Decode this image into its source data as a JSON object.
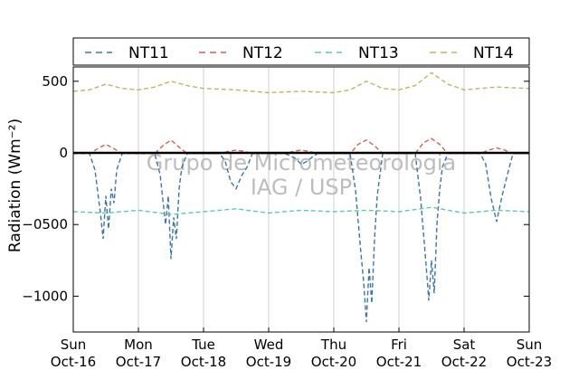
{
  "chart_data": {
    "type": "line",
    "ylabel": "Radiation (Wm⁻²)",
    "ylim": [
      -1250,
      600
    ],
    "xlim": [
      "2016-10-16",
      "2016-10-23"
    ],
    "yticks": [
      500,
      0,
      -500,
      -1000
    ],
    "ytick_labels": [
      "500",
      "0",
      "−0500",
      "−1000"
    ],
    "xtick_labels": [
      [
        "Sun",
        "Oct-16"
      ],
      [
        "Mon",
        "Oct-17"
      ],
      [
        "Tue",
        "Oct-18"
      ],
      [
        "Wed",
        "Oct-19"
      ],
      [
        "Thu",
        "Oct-20"
      ],
      [
        "Fri",
        "Oct-21"
      ],
      [
        "Sat",
        "Oct-22"
      ],
      [
        "Sun",
        "Oct-23"
      ]
    ],
    "grid": "vertical",
    "legend_position": "top",
    "watermark": [
      "Grupo de Micrometeorologia",
      "IAG / USP"
    ],
    "series": [
      {
        "name": "NT11",
        "color": "#3b75af",
        "x": [
          "2016-10-16 00:00",
          "2016-10-16 06:00",
          "2016-10-16 08:00",
          "2016-10-16 10:00",
          "2016-10-16 11:00",
          "2016-10-16 12:00",
          "2016-10-16 13:00",
          "2016-10-16 14:00",
          "2016-10-16 15:00",
          "2016-10-16 16:00",
          "2016-10-16 18:00",
          "2016-10-17 00:00",
          "2016-10-17 06:00",
          "2016-10-17 08:00",
          "2016-10-17 10:00",
          "2016-10-17 11:00",
          "2016-10-17 12:00",
          "2016-10-17 13:00",
          "2016-10-17 14:00",
          "2016-10-17 15:00",
          "2016-10-17 16:00",
          "2016-10-17 18:00",
          "2016-10-18 00:00",
          "2016-10-18 06:00",
          "2016-10-18 08:00",
          "2016-10-18 10:00",
          "2016-10-18 12:00",
          "2016-10-18 14:00",
          "2016-10-18 16:00",
          "2016-10-18 18:00",
          "2016-10-19 00:00",
          "2016-10-19 06:00",
          "2016-10-19 08:00",
          "2016-10-19 10:00",
          "2016-10-19 12:00",
          "2016-10-19 14:00",
          "2016-10-19 16:00",
          "2016-10-19 18:00",
          "2016-10-20 00:00",
          "2016-10-20 06:00",
          "2016-10-20 08:00",
          "2016-10-20 10:00",
          "2016-10-20 11:00",
          "2016-10-20 12:00",
          "2016-10-20 13:00",
          "2016-10-20 14:00",
          "2016-10-20 15:00",
          "2016-10-20 16:00",
          "2016-10-20 18:00",
          "2016-10-21 00:00",
          "2016-10-21 06:00",
          "2016-10-21 08:00",
          "2016-10-21 10:00",
          "2016-10-21 11:00",
          "2016-10-21 12:00",
          "2016-10-21 13:00",
          "2016-10-21 14:00",
          "2016-10-21 15:00",
          "2016-10-21 16:00",
          "2016-10-21 18:00",
          "2016-10-22 00:00",
          "2016-10-22 06:00",
          "2016-10-22 08:00",
          "2016-10-22 10:00",
          "2016-10-22 12:00",
          "2016-10-22 14:00",
          "2016-10-22 16:00",
          "2016-10-22 18:00",
          "2016-10-23 00:00"
        ],
        "y": [
          -5,
          -5,
          -120,
          -420,
          -600,
          -300,
          -530,
          -250,
          -350,
          -120,
          -5,
          -5,
          -5,
          -150,
          -500,
          -300,
          -740,
          -450,
          -600,
          -250,
          -100,
          -5,
          -5,
          -5,
          -60,
          -200,
          -250,
          -160,
          -100,
          -5,
          -5,
          -5,
          -20,
          -40,
          -80,
          -60,
          -30,
          -5,
          -5,
          -5,
          -260,
          -700,
          -900,
          -1180,
          -800,
          -1050,
          -600,
          -300,
          -5,
          -5,
          -5,
          -320,
          -780,
          -1030,
          -750,
          -980,
          -500,
          -260,
          -100,
          -5,
          -5,
          -5,
          -80,
          -320,
          -480,
          -300,
          -150,
          -5,
          -5
        ]
      },
      {
        "name": "NT12",
        "color": "#d15f5f",
        "x": [
          "2016-10-16 00:00",
          "2016-10-16 06:00",
          "2016-10-16 09:00",
          "2016-10-16 12:00",
          "2016-10-16 15:00",
          "2016-10-16 18:00",
          "2016-10-17 00:00",
          "2016-10-17 06:00",
          "2016-10-17 09:00",
          "2016-10-17 12:00",
          "2016-10-17 15:00",
          "2016-10-17 18:00",
          "2016-10-18 00:00",
          "2016-10-18 06:00",
          "2016-10-18 09:00",
          "2016-10-18 12:00",
          "2016-10-18 15:00",
          "2016-10-18 18:00",
          "2016-10-19 00:00",
          "2016-10-19 06:00",
          "2016-10-19 09:00",
          "2016-10-19 12:00",
          "2016-10-19 15:00",
          "2016-10-19 18:00",
          "2016-10-20 00:00",
          "2016-10-20 06:00",
          "2016-10-20 09:00",
          "2016-10-20 12:00",
          "2016-10-20 15:00",
          "2016-10-20 18:00",
          "2016-10-21 00:00",
          "2016-10-21 06:00",
          "2016-10-21 09:00",
          "2016-10-21 12:00",
          "2016-10-21 15:00",
          "2016-10-21 18:00",
          "2016-10-22 00:00",
          "2016-10-22 06:00",
          "2016-10-22 09:00",
          "2016-10-22 12:00",
          "2016-10-22 15:00",
          "2016-10-22 18:00",
          "2016-10-23 00:00"
        ],
        "y": [
          -5,
          -5,
          30,
          60,
          30,
          -5,
          -5,
          -5,
          50,
          90,
          40,
          -5,
          -5,
          -5,
          10,
          20,
          10,
          -5,
          -5,
          -5,
          10,
          20,
          10,
          -5,
          -5,
          -5,
          60,
          90,
          50,
          -5,
          -5,
          -5,
          70,
          100,
          60,
          -5,
          -5,
          -5,
          20,
          35,
          20,
          -5,
          -5
        ]
      },
      {
        "name": "NT13",
        "color": "#5dcca3",
        "x": [
          "2016-10-16 00:00",
          "2016-10-16 12:00",
          "2016-10-17 00:00",
          "2016-10-17 12:00",
          "2016-10-18 00:00",
          "2016-10-18 12:00",
          "2016-10-19 00:00",
          "2016-10-19 12:00",
          "2016-10-20 00:00",
          "2016-10-20 12:00",
          "2016-10-21 00:00",
          "2016-10-21 12:00",
          "2016-10-22 00:00",
          "2016-10-22 12:00",
          "2016-10-23 00:00"
        ],
        "y": [
          -410,
          -420,
          -400,
          -430,
          -410,
          -390,
          -420,
          -400,
          -410,
          -400,
          -410,
          -380,
          -420,
          -400,
          -410
        ]
      },
      {
        "name": "NT14",
        "color": "#bfb760",
        "x": [
          "2016-10-16 00:00",
          "2016-10-16 06:00",
          "2016-10-16 12:00",
          "2016-10-16 18:00",
          "2016-10-17 00:00",
          "2016-10-17 06:00",
          "2016-10-17 12:00",
          "2016-10-17 18:00",
          "2016-10-18 00:00",
          "2016-10-18 12:00",
          "2016-10-19 00:00",
          "2016-10-19 12:00",
          "2016-10-20 00:00",
          "2016-10-20 06:00",
          "2016-10-20 12:00",
          "2016-10-20 18:00",
          "2016-10-21 00:00",
          "2016-10-21 06:00",
          "2016-10-21 12:00",
          "2016-10-21 18:00",
          "2016-10-22 00:00",
          "2016-10-22 12:00",
          "2016-10-23 00:00"
        ],
        "y": [
          430,
          440,
          480,
          450,
          440,
          460,
          500,
          470,
          450,
          440,
          420,
          430,
          420,
          440,
          500,
          450,
          440,
          470,
          560,
          480,
          440,
          460,
          450
        ]
      }
    ]
  }
}
